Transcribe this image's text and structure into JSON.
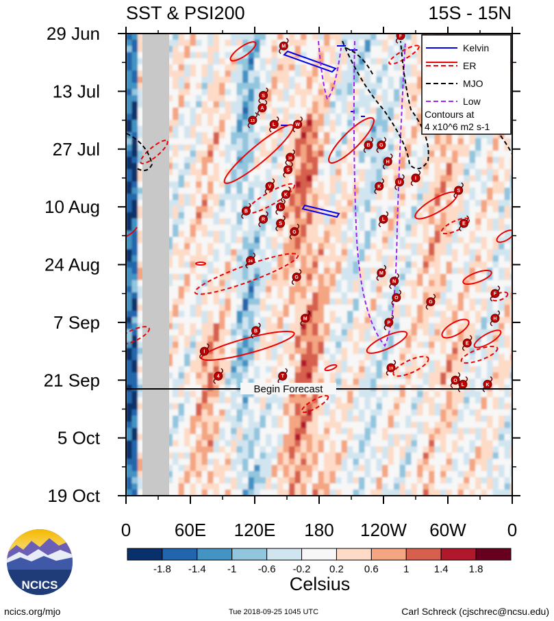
{
  "chart_data": {
    "type": "heatmap",
    "title_left": "SST & PSI200",
    "title_right": "15S - 15N",
    "y_ticks": [
      "29 Jun",
      "13 Jul",
      "27 Jul",
      "10 Aug",
      "24 Aug",
      "7 Sep",
      "21 Sep",
      "5 Oct",
      "19 Oct"
    ],
    "x_ticks": [
      "0",
      "60E",
      "120E",
      "180",
      "120W",
      "60W",
      "0"
    ],
    "x_range_deg": [
      0,
      360
    ],
    "forecast_label": "Begin Forecast",
    "forecast_start_day": 85,
    "colorbar": {
      "label": "Celsius",
      "ticks": [
        "-1.8",
        "-1.4",
        "-1",
        "-0.6",
        "-0.2",
        "0.2",
        "0.6",
        "1",
        "1.4",
        "1.8"
      ],
      "colors": [
        "#08306b",
        "#2166ac",
        "#4393c3",
        "#92c5de",
        "#d1e5f0",
        "#f7f7f7",
        "#fddbc7",
        "#f4a582",
        "#d6604d",
        "#b2182b",
        "#67001f"
      ]
    },
    "legend": {
      "items": [
        {
          "name": "Kelvin",
          "color": "#0000ee",
          "style": "solid"
        },
        {
          "name": "ER",
          "color": "#ee0000",
          "style": "dashed-solid"
        },
        {
          "name": "MJO",
          "color": "#000000",
          "style": "dashed"
        },
        {
          "name": "Low",
          "color": "#a020f0",
          "style": "dashed"
        }
      ],
      "note_line1": "Contours at",
      "note_line2": "4 x10^6 m2 s-1"
    },
    "storms": [
      {
        "label": "F",
        "lon": 256,
        "day": 0.5
      },
      {
        "label": "M",
        "lon": 147,
        "day": 3
      },
      {
        "label": "S",
        "lon": 128,
        "day": 15
      },
      {
        "label": "A",
        "lon": 127,
        "day": 18
      },
      {
        "label": "13",
        "lon": 118,
        "day": 21
      },
      {
        "label": "L",
        "lon": 138,
        "day": 22
      },
      {
        "label": "W",
        "lon": 160,
        "day": 22
      },
      {
        "label": "B",
        "lon": 226,
        "day": 27
      },
      {
        "label": "G",
        "lon": 238,
        "day": 27
      },
      {
        "label": "16",
        "lon": 153,
        "day": 30
      },
      {
        "label": "H",
        "lon": 244,
        "day": 31
      },
      {
        "label": "S",
        "lon": 151,
        "day": 33
      },
      {
        "label": "I",
        "lon": 270,
        "day": 35
      },
      {
        "label": "U",
        "lon": 255,
        "day": 36
      },
      {
        "label": "V",
        "lon": 134,
        "day": 37
      },
      {
        "label": "K",
        "lon": 236,
        "day": 37
      },
      {
        "label": "S",
        "lon": 310,
        "day": 38
      },
      {
        "label": "K",
        "lon": 149,
        "day": 39
      },
      {
        "label": "B",
        "lon": 112,
        "day": 43
      },
      {
        "label": "L",
        "lon": 144,
        "day": 42
      },
      {
        "label": "R",
        "lon": 128,
        "day": 45
      },
      {
        "label": "S",
        "lon": 144,
        "day": 46
      },
      {
        "label": "L",
        "lon": 240,
        "day": 45
      },
      {
        "label": "E",
        "lon": 315,
        "day": 46
      },
      {
        "label": "G",
        "lon": 157,
        "day": 48
      },
      {
        "label": "24",
        "lon": 116,
        "day": 55
      },
      {
        "label": "M",
        "lon": 238,
        "day": 58
      },
      {
        "label": "G",
        "lon": 159,
        "day": 59
      },
      {
        "label": "N",
        "lon": 250,
        "day": 60
      },
      {
        "label": "F",
        "lon": 344,
        "day": 63
      },
      {
        "label": "O",
        "lon": 252,
        "day": 64
      },
      {
        "label": "G",
        "lon": 284,
        "day": 65
      },
      {
        "label": "M",
        "lon": 167,
        "day": 69
      },
      {
        "label": "H",
        "lon": 344,
        "day": 69
      },
      {
        "label": "P",
        "lon": 245,
        "day": 70
      },
      {
        "label": "B",
        "lon": 121,
        "day": 72
      },
      {
        "label": "E",
        "lon": 318,
        "day": 75
      },
      {
        "label": "I",
        "lon": 73,
        "day": 77
      },
      {
        "label": "19",
        "lon": 247,
        "day": 81
      },
      {
        "label": "4",
        "lon": 86,
        "day": 83
      },
      {
        "label": "T",
        "lon": 146,
        "day": 83
      },
      {
        "label": "O",
        "lon": 307,
        "day": 84
      },
      {
        "label": "L",
        "lon": 314,
        "day": 85
      },
      {
        "label": "K",
        "lon": 337,
        "day": 85
      }
    ]
  },
  "branding": {
    "logo_text": "NCICS"
  },
  "footer": {
    "url": "ncics.org/mjo",
    "timestamp": "Tue 2018-09-25 1045 UTC",
    "author": "Carl Schreck (cjschrec@ncsu.edu)"
  }
}
